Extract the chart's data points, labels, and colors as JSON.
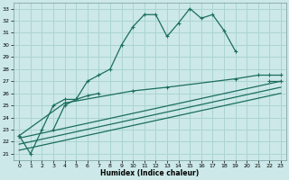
{
  "xlabel": "Humidex (Indice chaleur)",
  "xlim": [
    -0.5,
    23.5
  ],
  "ylim": [
    20.5,
    33.5
  ],
  "yticks": [
    21,
    22,
    23,
    24,
    25,
    26,
    27,
    28,
    29,
    30,
    31,
    32,
    33
  ],
  "xticks": [
    0,
    1,
    2,
    3,
    4,
    5,
    6,
    7,
    8,
    9,
    10,
    11,
    12,
    13,
    14,
    15,
    16,
    17,
    18,
    19,
    20,
    21,
    22,
    23
  ],
  "bg_color": "#cce8e8",
  "grid_color": "#aad4d4",
  "line_color": "#1a6e5e",
  "line1": [
    22.5,
    21.0,
    23.0,
    25.0,
    25.5,
    25.5,
    27.0,
    27.5,
    28.0,
    30.0,
    31.5,
    32.5,
    32.5,
    30.7,
    31.8,
    33.0,
    32.2,
    32.5,
    31.2,
    29.5,
    null,
    null,
    27.0,
    27.0
  ],
  "line2": [
    null,
    null,
    null,
    23.0,
    25.0,
    25.5,
    25.8,
    26.0,
    null,
    null,
    null,
    null,
    null,
    null,
    null,
    null,
    null,
    null,
    null,
    null,
    null,
    null,
    null,
    null
  ],
  "line3_x": [
    0,
    4,
    10,
    13,
    19,
    21,
    22,
    23
  ],
  "line3_y": [
    22.5,
    25.2,
    26.2,
    26.5,
    27.2,
    27.5,
    27.5,
    27.5
  ],
  "line4_x": [
    0,
    23
  ],
  "line4_y": [
    22.3,
    27.0
  ],
  "line5_x": [
    0,
    23
  ],
  "line5_y": [
    21.8,
    26.5
  ],
  "line6_x": [
    0,
    23
  ],
  "line6_y": [
    21.3,
    26.0
  ]
}
